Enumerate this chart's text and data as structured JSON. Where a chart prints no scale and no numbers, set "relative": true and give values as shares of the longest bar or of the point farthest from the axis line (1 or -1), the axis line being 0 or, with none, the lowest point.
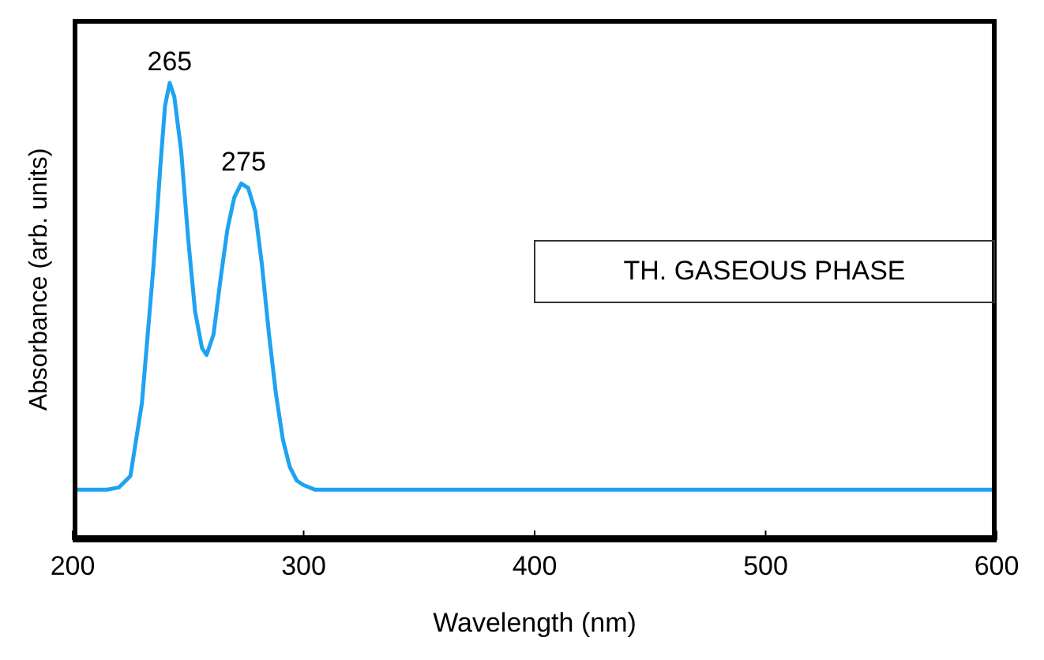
{
  "chart_data": {
    "type": "line",
    "relative": true,
    "xlabel": "Wavelength (nm)",
    "ylabel": "Absorbance (arb. units)",
    "xlim": [
      200,
      600
    ],
    "xticks": [
      200,
      300,
      400,
      500,
      600
    ],
    "grid": false,
    "marker": "none",
    "line_style": "solid",
    "x": [
      200,
      215,
      220,
      225,
      230,
      235,
      238,
      240,
      242,
      244,
      247,
      250,
      253,
      256,
      258,
      261,
      264,
      267,
      270,
      273,
      276,
      279,
      282,
      285,
      288,
      291,
      294,
      297,
      300,
      305,
      320,
      600
    ],
    "series": [
      {
        "color": "#1fa3f0",
        "values": [
          0.11,
          0.11,
          0.115,
          0.14,
          0.3,
          0.6,
          0.82,
          0.95,
          1.0,
          0.97,
          0.85,
          0.66,
          0.5,
          0.42,
          0.405,
          0.45,
          0.57,
          0.68,
          0.75,
          0.78,
          0.77,
          0.72,
          0.6,
          0.45,
          0.32,
          0.22,
          0.16,
          0.13,
          0.12,
          0.11,
          0.11,
          0.11
        ]
      }
    ],
    "annotations": [
      {
        "text": "265",
        "x": 242,
        "y": 1.0
      },
      {
        "text": "275",
        "x": 274,
        "y": 0.78
      },
      "TH. GASEOUS PHASE"
    ]
  }
}
